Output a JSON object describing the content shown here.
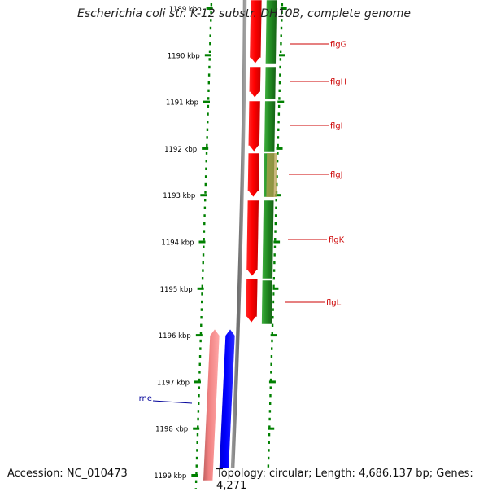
{
  "title": "Escherichia coli str. K-12 substr. DH10B, complete genome",
  "accession": "Accession: NC_010473",
  "topology": "Topology: circular; Length: 4,686,137 bp; Genes: 4,271",
  "colors": {
    "ruler": "#008000",
    "axis": "#808080",
    "gene_forward_strand": "#ff0000",
    "cds_forward_strand": "#228b22",
    "gene_reverse_strand": "#f08080",
    "cds_reverse_strand": "#0000ff",
    "label_forward": "#cc0000",
    "label_reverse": "#000099",
    "highlight_overlap": "#b8a050"
  },
  "ruler_labels": [
    "1189 kbp",
    "1190 kbp",
    "1191 kbp",
    "1192 kbp",
    "1193 kbp",
    "1194 kbp",
    "1195 kbp",
    "1196 kbp",
    "1197 kbp",
    "1198 kbp",
    "1199 kbp"
  ],
  "genes": [
    {
      "name": "flgG",
      "strand": "forward"
    },
    {
      "name": "flgH",
      "strand": "forward"
    },
    {
      "name": "flgI",
      "strand": "forward"
    },
    {
      "name": "flgJ",
      "strand": "forward"
    },
    {
      "name": "flgK",
      "strand": "forward"
    },
    {
      "name": "flgL",
      "strand": "forward"
    },
    {
      "name": "rne",
      "strand": "reverse"
    }
  ]
}
